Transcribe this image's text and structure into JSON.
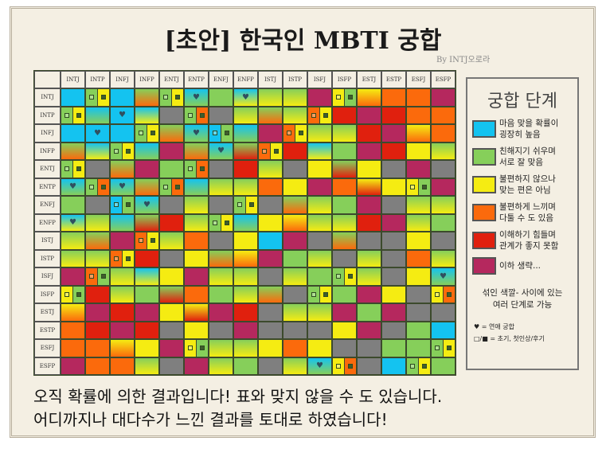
{
  "title": "[초안] 한국인 MBTI 궁합",
  "byline": "By INTJ오로라",
  "colors": {
    "B": "#14c3f0",
    "G": "#86cf5a",
    "Y": "#f5ec12",
    "O": "#fb6a0c",
    "R": "#e0200e",
    "M": "#b5285e",
    "X": "#7f7f7f"
  },
  "types": [
    "INTJ",
    "INTP",
    "INFJ",
    "INFP",
    "ENTJ",
    "ENTP",
    "ENFJ",
    "ENFP",
    "ISTJ",
    "ISTP",
    "ISFJ",
    "ISFP",
    "ESTJ",
    "ESTP",
    "ESFJ",
    "ESFP"
  ],
  "matrix": [
    [
      "B",
      "s:G/Y",
      "B",
      "G>O",
      "s:G/Y",
      "h:B>G",
      "G",
      "h:B>Y",
      "G>Y",
      "G>Y",
      "M",
      "s:Y/G",
      "Y>O",
      "O",
      "O",
      "M"
    ],
    [
      "s:G/Y",
      "B>G",
      "h:B",
      "B>Y",
      "X",
      "s:G/O",
      "X",
      "G>Y",
      "G>O",
      "G>Y",
      "s:O/Y",
      "R",
      "M",
      "R",
      "O",
      "O"
    ],
    [
      "B",
      "h:B",
      "B",
      "s:G/Y",
      "G>O",
      "h:B>G",
      "s:B/G",
      "B>G",
      "M",
      "s:O/Y",
      "G>Y",
      "G>Y",
      "R",
      "M",
      "Y>O",
      "O"
    ],
    [
      "G>O",
      "B>Y",
      "s:G/Y",
      "B>G",
      "M",
      "G>O",
      "h:B>G",
      "G>R",
      "s:O/Y",
      "R",
      "B>Y",
      "G",
      "M",
      "R",
      "Y",
      "G>Y"
    ],
    [
      "s:G/Y",
      "X",
      "G>O",
      "M",
      "G",
      "s:G/O",
      "X",
      "R",
      "G>Y",
      "X",
      "Y",
      "G>R",
      "Y",
      "X",
      "M",
      "X"
    ],
    [
      "h:B>G",
      "s:G/O",
      "h:B>G",
      "G>O",
      "s:G/O",
      "B>G",
      "G>Y",
      "G>Y",
      "O",
      "Y",
      "M",
      "O",
      "Y>R",
      "Y",
      "s:Y/G",
      "M"
    ],
    [
      "G",
      "X",
      "s:B/G",
      "h:B>G",
      "X",
      "G>Y",
      "X",
      "s:G/Y",
      "X",
      "G>O",
      "G>Y",
      "G",
      "M",
      "X",
      "G>Y",
      "G>Y"
    ],
    [
      "h:B>Y",
      "G>Y",
      "B>G",
      "G>R",
      "R",
      "G>Y",
      "s:G/Y",
      "B>G",
      "Y",
      "Y>O",
      "G>Y",
      "G>Y",
      "R",
      "M",
      "G>Y",
      "G"
    ],
    [
      "G>Y",
      "G>O",
      "M",
      "s:O/Y",
      "G>Y",
      "O",
      "X",
      "Y",
      "B",
      "M",
      "X",
      "G>O",
      "X",
      "X",
      "Y",
      "X"
    ],
    [
      "G>Y",
      "G>Y",
      "s:O/Y",
      "R",
      "X",
      "Y",
      "G>O",
      "Y>O",
      "M",
      "G",
      "G>Y",
      "X",
      "G>Y",
      "X",
      "O",
      "G>Y"
    ],
    [
      "M",
      "s:O/G",
      "G>Y",
      "B>Y",
      "Y",
      "M",
      "G>Y",
      "G>Y",
      "X",
      "G>Y",
      "G",
      "s:G/Y",
      "G>Y",
      "X",
      "Y",
      "h:B>G"
    ],
    [
      "s:Y/G",
      "R",
      "G>Y",
      "G",
      "G>R",
      "O",
      "G",
      "G>Y",
      "G>O",
      "X",
      "s:G/Y",
      "G",
      "M",
      "Y",
      "X",
      "s:Y/O"
    ],
    [
      "Y>O",
      "M",
      "R",
      "M",
      "Y",
      "Y>R",
      "M",
      "R",
      "X",
      "G>Y",
      "G>Y",
      "M",
      "G",
      "M",
      "X",
      "X"
    ],
    [
      "O",
      "R",
      "M",
      "R",
      "X",
      "Y",
      "X",
      "M",
      "X",
      "X",
      "X",
      "Y",
      "M",
      "X",
      "G",
      "B"
    ],
    [
      "O",
      "O",
      "Y>O",
      "Y",
      "M",
      "s:Y/G",
      "G>Y",
      "G>Y",
      "Y",
      "O",
      "Y",
      "X",
      "X",
      "G",
      "G",
      "s:G/Y"
    ],
    [
      "M",
      "O",
      "O",
      "G>Y",
      "X",
      "M",
      "G>Y",
      "G",
      "X",
      "G>Y",
      "h:B>G",
      "s:Y/O",
      "X",
      "B",
      "s:G/Y",
      "G"
    ]
  ],
  "legend": {
    "title": "궁합 단계",
    "items": [
      {
        "color": "B",
        "line1": "마음 맞을 확률이",
        "line2": "굉장히 높음"
      },
      {
        "color": "G",
        "line1": "친해지기 쉬우며",
        "line2": "서로 잘 맞음"
      },
      {
        "color": "Y",
        "line1": "불편하지 않으나",
        "line2": "맞는 편은 아님"
      },
      {
        "color": "O",
        "line1": "불편하게 느끼며",
        "line2": "다툴 수 도 있음"
      },
      {
        "color": "R",
        "line1": "이해하기 힘들며",
        "line2": "관계가 좋지 못함"
      },
      {
        "color": "M",
        "line1": "이하 생략...",
        "line2": ""
      }
    ],
    "note1": "섞인 색깔- 사이에 있는",
    "note2": "여러 단계로 가능",
    "heart_note": "♥ = 연애 궁합",
    "icon_note": "□/■ = 초기, 첫인상/후기"
  },
  "footer": {
    "line1": "오직 확률에 의한 결과입니다! 표와 맞지 않을 수 도 있습니다.",
    "line2": "어디까지나 대다수가 느낀 결과를 토대로 하였습니다!"
  }
}
